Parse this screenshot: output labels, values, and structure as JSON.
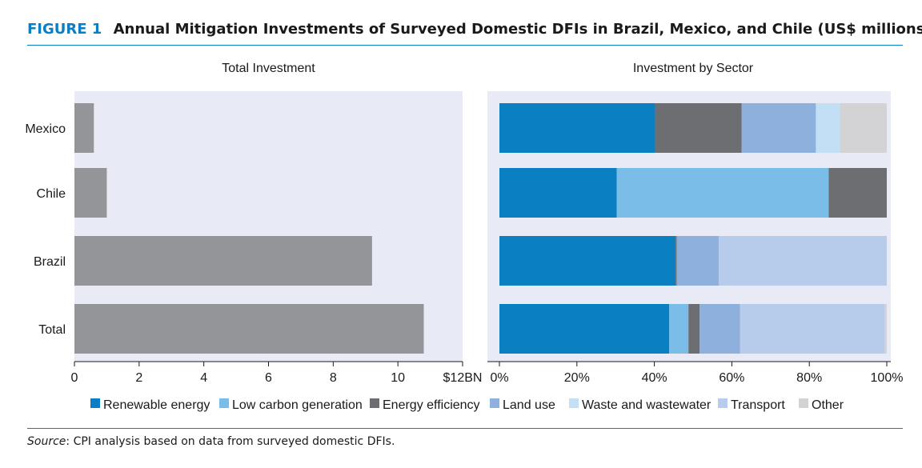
{
  "figure": {
    "label": "FIGURE 1",
    "title": "Annual Mitigation Investments of Surveyed Domestic DFIs in Brazil, Mexico, and Chile (US$ millions)",
    "source_label": "Source",
    "source_text": ": CPI analysis based on data from surveyed domestic DFIs."
  },
  "chart_data": [
    {
      "type": "bar",
      "orientation": "horizontal",
      "title": "Total Investment",
      "categories": [
        "Mexico",
        "Chile",
        "Brazil",
        "Total"
      ],
      "values": [
        0.6,
        1.0,
        9.2,
        10.8
      ],
      "xlim": [
        0,
        12
      ],
      "xticks": [
        "0",
        "2",
        "4",
        "6",
        "8",
        "10",
        "$12BN"
      ],
      "bar_color": "#939598",
      "background": "#e8eaf6"
    },
    {
      "type": "bar",
      "orientation": "horizontal",
      "stacked": "percent",
      "title": "Investment by Sector",
      "categories": [
        "Mexico",
        "Chile",
        "Brazil",
        "Total"
      ],
      "xlim": [
        0,
        100
      ],
      "xticks": [
        "0%",
        "20%",
        "40%",
        "60%",
        "80%",
        "100%"
      ],
      "legend_position": "bottom",
      "series": [
        {
          "name": "Renewable energy",
          "color": "#0a7fc2",
          "values": [
            40.2,
            30.3,
            45.5,
            43.8
          ]
        },
        {
          "name": "Low carbon generation",
          "color": "#79bde8",
          "values": [
            0,
            54.7,
            0,
            5.0
          ]
        },
        {
          "name": "Energy efficiency",
          "color": "#6d6e71",
          "values": [
            22.3,
            15.0,
            0.3,
            2.9
          ]
        },
        {
          "name": "Land use",
          "color": "#8eb0dc",
          "values": [
            19.2,
            0,
            10.8,
            10.4
          ]
        },
        {
          "name": "Waste and wastewater",
          "color": "#c3dff5",
          "values": [
            6.2,
            0,
            0,
            0
          ]
        },
        {
          "name": "Transport",
          "color": "#b7cbea",
          "values": [
            0,
            0,
            43.4,
            37.3
          ]
        },
        {
          "name": "Other",
          "color": "#d3d3d5",
          "values": [
            12.1,
            0,
            0,
            0.6
          ]
        }
      ]
    }
  ]
}
